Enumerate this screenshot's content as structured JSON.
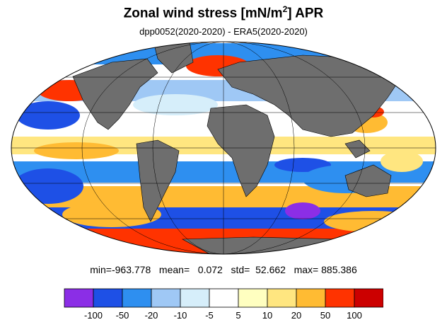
{
  "title": {
    "main": "Zonal wind stress [mN/m",
    "sup": "2",
    "end": "] APR"
  },
  "subtitle": "dpp0052(2020-2020) - ERA5(2020-2020)",
  "stats": {
    "line": "min=-963.778   mean=   0.072   std=  52.662   max= 885.386"
  },
  "colorbar": {
    "colors": [
      "#8b2ee6",
      "#1e50e6",
      "#2e8ff0",
      "#9fc8f5",
      "#d6eefa",
      "#ffffff",
      "#ffffc0",
      "#ffe680",
      "#ffbb33",
      "#ff3300",
      "#cc0000"
    ],
    "labels": [
      "-100",
      "-50",
      "-20",
      "-10",
      "-5",
      "5",
      "10",
      "20",
      "50",
      "100"
    ]
  },
  "map": {
    "projection": "Mollweide",
    "land_color": "#6e6e6e",
    "ocean_color": "#ffffff"
  }
}
